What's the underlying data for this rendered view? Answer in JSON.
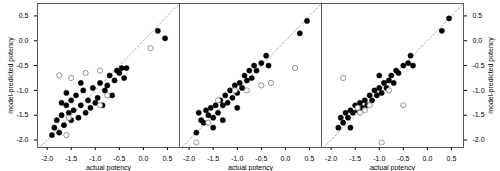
{
  "chart_data": [
    {
      "type": "scatter",
      "x_label": "actual potency",
      "y_label": "model-predicted potency",
      "xlim": [
        -2.2,
        0.75
      ],
      "ylim": [
        -2.15,
        0.75
      ],
      "xticks": [
        {
          "value": -2,
          "label": "-2.0"
        },
        {
          "value": -1.5,
          "label": "-1.5"
        },
        {
          "value": -1,
          "label": "-1.0"
        },
        {
          "value": -0.5,
          "label": "-0.5"
        },
        {
          "value": 0,
          "label": "0.0"
        },
        {
          "value": 0.5,
          "label": "0.5"
        }
      ],
      "yticks": [
        {
          "value": -2,
          "label": "-2.0"
        },
        {
          "value": -1.5,
          "label": "-1.5"
        },
        {
          "value": -1,
          "label": "-1.0"
        },
        {
          "value": -0.5,
          "label": "-0.5"
        },
        {
          "value": 0,
          "label": "0.0"
        },
        {
          "value": 0.5,
          "label": "0.5"
        }
      ],
      "series": [
        {
          "marker": "filled",
          "color": "#000000",
          "x": [
            -1.9,
            -1.85,
            -1.8,
            -1.75,
            -1.7,
            -1.65,
            -1.6,
            -1.55,
            -1.5,
            -1.5,
            -1.45,
            -1.4,
            -1.35,
            -1.3,
            -1.25,
            -1.2,
            -1.15,
            -1.1,
            -1.05,
            -1.0,
            -0.95,
            -0.9,
            -0.85,
            -0.8,
            -0.75,
            -0.7,
            -0.65,
            -0.6,
            -0.55,
            -0.5,
            -0.45,
            -0.4,
            -0.35,
            -1.6,
            -1.3,
            -1.7,
            0.3,
            0.45
          ],
          "y": [
            -1.9,
            -1.75,
            -1.6,
            -1.85,
            -1.5,
            -1.7,
            -1.3,
            -1.45,
            -1.6,
            -1.2,
            -1.4,
            -1.1,
            -1.55,
            -1.3,
            -1.0,
            -1.45,
            -1.2,
            -1.35,
            -0.95,
            -1.25,
            -1.15,
            -0.85,
            -1.3,
            -1.0,
            -0.9,
            -0.7,
            -1.1,
            -0.8,
            -0.6,
            -0.65,
            -0.55,
            -0.75,
            -0.55,
            -1.05,
            -0.85,
            -1.25,
            0.2,
            0.05
          ]
        },
        {
          "marker": "open",
          "color": "#888888",
          "x": [
            -1.75,
            -1.2,
            -0.9,
            -1.5,
            -1.6,
            -0.9,
            -0.75,
            0.15,
            -1.55
          ],
          "y": [
            -0.7,
            -0.65,
            -0.6,
            -0.75,
            -1.9,
            -1.3,
            -1.1,
            -0.15,
            -1.55
          ]
        }
      ]
    },
    {
      "type": "scatter",
      "x_label": "actual potency",
      "tick_labels": "x",
      "xlim": [
        -2.2,
        0.75
      ],
      "ylim": [
        -2.15,
        0.75
      ],
      "xticks": [
        {
          "value": -2,
          "label": "-2.0"
        },
        {
          "value": -1.5,
          "label": "-1.5"
        },
        {
          "value": -1,
          "label": "-1.0"
        },
        {
          "value": -0.5,
          "label": "-0.5"
        },
        {
          "value": 0,
          "label": "0.0"
        },
        {
          "value": 0.5,
          "label": "0.5"
        }
      ],
      "series": [
        {
          "marker": "filled",
          "color": "#000000",
          "x": [
            -1.85,
            -1.8,
            -1.75,
            -1.7,
            -1.65,
            -1.6,
            -1.55,
            -1.5,
            -1.45,
            -1.4,
            -1.35,
            -1.3,
            -1.25,
            -1.2,
            -1.15,
            -1.1,
            -1.05,
            -1.0,
            -0.95,
            -0.9,
            -0.85,
            -0.8,
            -0.75,
            -0.7,
            -0.65,
            -0.6,
            -0.5,
            -0.4,
            -0.35,
            -1.5,
            -1.3,
            0.3,
            0.45,
            -1.0
          ],
          "y": [
            -1.85,
            -1.45,
            -1.6,
            -1.65,
            -1.4,
            -1.5,
            -1.35,
            -1.55,
            -1.3,
            -1.45,
            -1.2,
            -1.3,
            -1.1,
            -1.25,
            -1.0,
            -1.15,
            -0.9,
            -1.05,
            -0.85,
            -0.95,
            -0.7,
            -0.8,
            -0.6,
            -0.75,
            -0.5,
            -0.6,
            -0.45,
            -0.3,
            -0.5,
            -1.75,
            -1.6,
            0.15,
            0.4,
            -1.35
          ]
        },
        {
          "marker": "open",
          "color": "#888888",
          "x": [
            -1.85,
            -1.4,
            -1.05,
            -0.8,
            -0.5,
            -0.3,
            0.2,
            -1.6
          ],
          "y": [
            -2.05,
            -1.2,
            -1.0,
            -1.0,
            -0.9,
            -0.85,
            -0.55,
            -1.65
          ]
        }
      ]
    },
    {
      "type": "scatter",
      "x_label": "actual potency",
      "y_label": "model-predicted potency",
      "xlim": [
        -2.2,
        0.75
      ],
      "ylim": [
        -2.15,
        0.75
      ],
      "xticks": [
        {
          "value": -2,
          "label": "-2.0"
        },
        {
          "value": -1.5,
          "label": "-1.5"
        },
        {
          "value": -1,
          "label": "-1.0"
        },
        {
          "value": -0.5,
          "label": "-0.5"
        },
        {
          "value": 0,
          "label": "0.0"
        },
        {
          "value": 0.5,
          "label": "0.5"
        }
      ],
      "yticks": [
        {
          "value": -2,
          "label": "-2.0"
        },
        {
          "value": -1.5,
          "label": "-1.5"
        },
        {
          "value": -1,
          "label": "-1.0"
        },
        {
          "value": -0.5,
          "label": "-0.5"
        },
        {
          "value": 0,
          "label": "0.0"
        },
        {
          "value": 0.5,
          "label": "0.5"
        }
      ],
      "series": [
        {
          "marker": "filled",
          "color": "#000000",
          "x": [
            -1.85,
            -1.8,
            -1.75,
            -1.7,
            -1.65,
            -1.6,
            -1.55,
            -1.5,
            -1.45,
            -1.4,
            -1.35,
            -1.3,
            -1.25,
            -1.2,
            -1.15,
            -1.1,
            -1.05,
            -1.0,
            -0.95,
            -0.9,
            -0.85,
            -0.8,
            -0.75,
            -0.7,
            -0.65,
            -0.6,
            -0.5,
            -0.4,
            -0.35,
            -0.3,
            0.3,
            0.45,
            -1.6,
            -1.0
          ],
          "y": [
            -1.75,
            -1.55,
            -1.65,
            -1.45,
            -1.55,
            -1.4,
            -1.45,
            -1.3,
            -1.4,
            -1.25,
            -1.35,
            -1.2,
            -1.3,
            -1.1,
            -1.2,
            -1.0,
            -1.1,
            -0.95,
            -1.05,
            -0.85,
            -0.95,
            -0.8,
            -0.7,
            -0.85,
            -0.6,
            -0.65,
            -0.5,
            -0.45,
            -0.3,
            -0.5,
            0.2,
            0.45,
            -1.75,
            -0.7
          ]
        },
        {
          "marker": "open",
          "color": "#888888",
          "x": [
            -1.75,
            -1.45,
            -1.4,
            -1.2,
            -0.95,
            -1.3,
            -0.8,
            -0.5
          ],
          "y": [
            -0.75,
            -1.35,
            -1.45,
            -1.3,
            -2.05,
            -1.4,
            -1.0,
            -1.3
          ]
        }
      ]
    }
  ]
}
